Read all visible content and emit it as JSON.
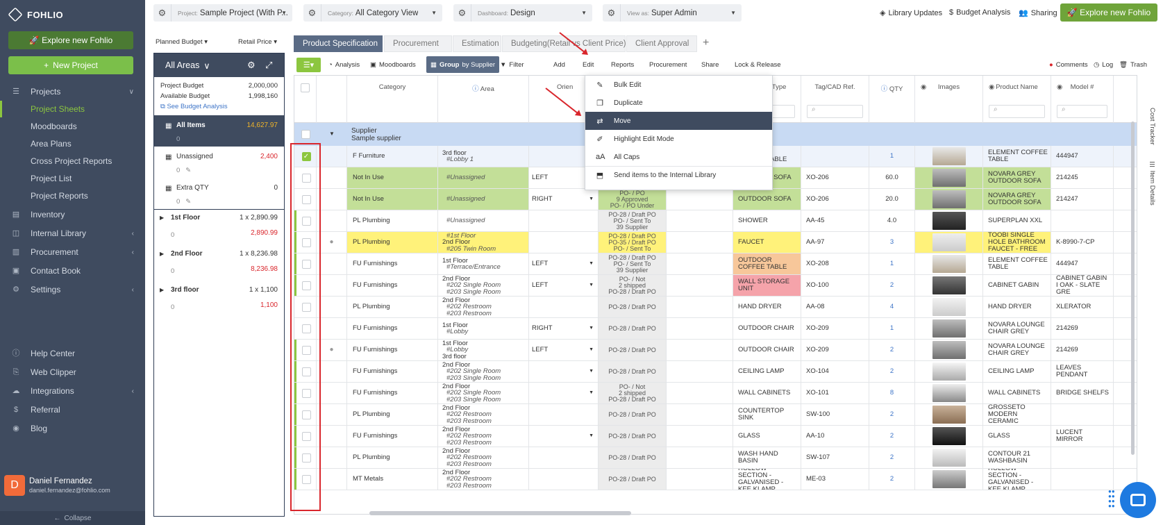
{
  "brand": {
    "name": "FOHLIO"
  },
  "sidebar": {
    "explore_label": "🚀 Explore new Fohlio",
    "new_project_label": "New Project",
    "nav": [
      {
        "label": "Projects",
        "icon": "list-icon",
        "chev": true
      },
      {
        "label": "Project Sheets",
        "sub": true,
        "active": true
      },
      {
        "label": "Moodboards",
        "sub": true
      },
      {
        "label": "Area Plans",
        "sub": true
      },
      {
        "label": "Cross Project Reports",
        "sub": true
      },
      {
        "label": "Project List",
        "sub": true
      },
      {
        "label": "Project Reports",
        "sub": true
      },
      {
        "label": "Inventory",
        "icon": "inventory-icon"
      },
      {
        "label": "Internal Library",
        "icon": "box-icon",
        "chev": true
      },
      {
        "label": "Procurement",
        "icon": "doc-icon",
        "chev": true
      },
      {
        "label": "Contact Book",
        "icon": "contact-icon"
      },
      {
        "label": "Settings",
        "icon": "gear-icon",
        "chev": true
      }
    ],
    "bottom_nav": [
      {
        "label": "Help Center",
        "icon": "info-icon"
      },
      {
        "label": "Web Clipper",
        "icon": "clip-icon"
      },
      {
        "label": "Integrations",
        "icon": "cloud-icon",
        "chev": true
      },
      {
        "label": "Referral",
        "icon": "dollar-icon"
      },
      {
        "label": "Blog",
        "icon": "rss-icon"
      }
    ],
    "user": {
      "initial": "D",
      "name": "Daniel Fernandez",
      "email": "daniel.fernandez@fohlio.com"
    },
    "collapse_label": "Collapse"
  },
  "topbar": {
    "project_label": "Project:",
    "project_value": "Sample Project (With P...",
    "category_label": "Category:",
    "category_value": "All Category View",
    "dashboard_label": "Dashboard:",
    "dashboard_value": "Design",
    "viewas_label": "View as:",
    "viewas_value": "Super Admin",
    "library_updates": "Library Updates",
    "budget_analysis": "Budget Analysis",
    "sharing": "Sharing",
    "explore_label": "🚀 Explore new Fohlio"
  },
  "budget": {
    "planned_label": "Planned Budget",
    "retail_label": "Retail Price",
    "head": "All Areas",
    "project_budget_label": "Project Budget",
    "project_budget": "2,000,000",
    "available_label": "Available Budget",
    "available": "1,998,160",
    "see_analysis": "See Budget Analysis",
    "items": [
      {
        "name": "All Items",
        "amount": "14,627.97",
        "sub": "0",
        "selected": true
      },
      {
        "name": "Unassigned",
        "amount": "2,400",
        "sub": "0",
        "red": true
      },
      {
        "name": "Extra QTY",
        "amount": "0",
        "sub": "0"
      }
    ],
    "floors": [
      {
        "name": "1st Floor",
        "qty": "1 x 2,890.99",
        "sub": "0",
        "amount": "2,890.99"
      },
      {
        "name": "2nd Floor",
        "qty": "1 x 8,236.98",
        "sub": "0",
        "amount": "8,236.98"
      },
      {
        "name": "3rd floor",
        "qty": "1 x 1,100",
        "sub": "0",
        "amount": "1,100"
      }
    ]
  },
  "tabs": [
    "Product Specification",
    "Procurement",
    "Estimation",
    "Budgeting(Retail vs Client Price)",
    "Client Approval"
  ],
  "toolbar": {
    "analysis": "Analysis",
    "moodboards": "Moodboards",
    "group": "Group",
    "group_by": "by Supplier",
    "filter": "Filter",
    "add": "Add",
    "edit": "Edit",
    "reports": "Reports",
    "procurement": "Procurement",
    "share": "Share",
    "lock": "Lock & Release",
    "comments": "Comments",
    "log": "Log",
    "trash": "Trash"
  },
  "columns": {
    "category": "Category",
    "area": "Area",
    "orient": "Orien",
    "product_type": "Product Type",
    "tag": "Tag/CAD Ref.",
    "qty": "QTY",
    "images": "Images",
    "product_name": "Product Name",
    "model": "Model #"
  },
  "group_row": {
    "line1": "Supplier",
    "line2": "Sample supplier"
  },
  "edit_menu": [
    "Bulk Edit",
    "Duplicate",
    "Move",
    "Highlight Edit Mode",
    "All Caps",
    "Send items to the Internal Library"
  ],
  "rows": [
    {
      "cat": "F Furniture",
      "area": [
        "3rd floor",
        "#Lobby 1"
      ],
      "orient": "",
      "status": [],
      "ptype": "OUTDOOR COFFEE TABLE",
      "tag": "",
      "qty": "1",
      "pname": "ELEMENT COFFEE TABLE",
      "model": "444947",
      "checked": true
    },
    {
      "cat": "Not In Use",
      "area": [
        "#Unassigned"
      ],
      "orient": "LEFT",
      "status": [],
      "ptype": "OUTDOOR SOFA",
      "tag": "XO-206",
      "qty": "60.0",
      "pname": "NOVARA GREY OUTDOOR SOFA",
      "model": "214245",
      "green": true
    },
    {
      "cat": "Not In Use",
      "area": [
        "#Unassigned"
      ],
      "orient": "RIGHT",
      "status": [
        "PO- / PO",
        "9 Approved",
        "PO- / PO Under"
      ],
      "ptype": "OUTDOOR SOFA",
      "tag": "XO-206",
      "qty": "20.0",
      "pname": "NOVARA GREY OUTDOOR SOFA",
      "model": "214247",
      "green": true
    },
    {
      "cat": "PL Plumbing",
      "area": [
        "#Unassigned"
      ],
      "orient": "",
      "status": [
        "PO-28 / Draft PO",
        "PO- / Sent To",
        "39 Supplier"
      ],
      "ptype": "SHOWER",
      "tag": "AA-45",
      "qty": "4.0",
      "pname": "SUPERPLAN XXL",
      "model": ""
    },
    {
      "cat": "PL Plumbing",
      "area": [
        "#1st Floor",
        "2nd Floor",
        "#205 Twin Room"
      ],
      "orient": "",
      "status": [
        "PO-28 / Draft PO",
        "PO-35 / Draft PO",
        "PO- / Sent To"
      ],
      "ptype": "FAUCET",
      "tag": "AA-97",
      "qty": "3",
      "pname": "TOOBI SINGLE HOLE BATHROOM FAUCET - FREE",
      "model": "K-8990-7-CP",
      "yellow": true
    },
    {
      "cat": "FU Furnishings",
      "area": [
        "1st Floor",
        "#Terrace/Entrance"
      ],
      "orient": "LEFT",
      "status": [
        "PO-28 / Draft PO",
        "PO- / Sent To",
        "39 Supplier"
      ],
      "ptype": "OUTDOOR COFFEE TABLE",
      "tag": "XO-208",
      "qty": "1",
      "pname": "ELEMENT COFFEE TABLE",
      "model": "444947",
      "ptcolor": "#f7c79a"
    },
    {
      "cat": "FU Furnishings",
      "area": [
        "2nd Floor",
        "#202 Single Room",
        "#203 Single Room"
      ],
      "orient": "LEFT",
      "status": [
        "PO- / Not",
        "2 shipped",
        "PO-28 / Draft PO"
      ],
      "ptype": "WALL STORAGE UNIT",
      "tag": "XO-100",
      "qty": "2",
      "pname": "CABINET GABIN",
      "model": "CABINET GABIN I OAK - SLATE GRE",
      "ptcolor": "#f5a3aa"
    },
    {
      "cat": "PL Plumbing",
      "area": [
        "2nd Floor",
        "#202 Restroom",
        "#203 Restroom"
      ],
      "orient": "",
      "status": [
        "PO-28 / Draft PO"
      ],
      "ptype": "HAND DRYER",
      "tag": "AA-08",
      "qty": "4",
      "pname": "HAND DRYER",
      "model": "XLERATOR"
    },
    {
      "cat": "FU Furnishings",
      "area": [
        "1st Floor",
        "#Lobby"
      ],
      "orient": "RIGHT",
      "status": [
        "PO-28 / Draft PO"
      ],
      "ptype": "OUTDOOR CHAIR",
      "tag": "XO-209",
      "qty": "1",
      "pname": "NOVARA LOUNGE CHAIR GREY",
      "model": "214269"
    },
    {
      "cat": "FU Furnishings",
      "area": [
        "1st Floor",
        "#Lobby",
        "3rd floor"
      ],
      "orient": "LEFT",
      "status": [
        "PO-28 / Draft PO"
      ],
      "ptype": "OUTDOOR CHAIR",
      "tag": "XO-209",
      "qty": "2",
      "pname": "NOVARA LOUNGE CHAIR GREY",
      "model": "214269",
      "comment": true
    },
    {
      "cat": "FU Furnishings",
      "area": [
        "2nd Floor",
        "#202 Single Room",
        "#203 Single Room"
      ],
      "orient": "",
      "status": [
        "PO-28 / Draft PO"
      ],
      "ptype": "CEILING LAMP",
      "tag": "XO-104",
      "qty": "2",
      "pname": "CEILING LAMP",
      "model": "LEAVES PENDANT"
    },
    {
      "cat": "FU Furnishings",
      "area": [
        "2nd Floor",
        "#202 Single Room",
        "#203 Single Room"
      ],
      "orient": "",
      "status": [
        "PO- / Not",
        "2 shipped",
        "PO-28 / Draft PO"
      ],
      "ptype": "WALL CABINETS",
      "tag": "XO-101",
      "qty": "8",
      "pname": "WALL CABINETS",
      "model": "BRIDGE SHELFS"
    },
    {
      "cat": "PL Plumbing",
      "area": [
        "2nd Floor",
        "#202 Restroom",
        "#203 Restroom"
      ],
      "orient": "",
      "status": [
        "PO-28 / Draft PO"
      ],
      "ptype": "COUNTERTOP SINK",
      "tag": "SW-100",
      "qty": "2",
      "pname": "GROSSETO MODERN CERAMIC",
      "model": ""
    },
    {
      "cat": "FU Furnishings",
      "area": [
        "2nd Floor",
        "#202 Restroom",
        "#203 Restroom"
      ],
      "orient": "",
      "status": [
        "PO-28 / Draft PO"
      ],
      "ptype": "GLASS",
      "tag": "AA-10",
      "qty": "2",
      "pname": "GLASS",
      "model": "LUCENT MIRROR"
    },
    {
      "cat": "PL Plumbing",
      "area": [
        "2nd Floor",
        "#202 Restroom",
        "#203 Restroom"
      ],
      "orient": "",
      "status": [
        "PO-28 / Draft PO"
      ],
      "ptype": "WASH HAND BASIN",
      "tag": "SW-107",
      "qty": "2",
      "pname": "CONTOUR 21 WASHBASIN",
      "model": ""
    },
    {
      "cat": "MT Metals",
      "area": [
        "2nd Floor",
        "#202 Restroom",
        "#203 Restroom"
      ],
      "orient": "",
      "status": [
        "PO-28 / Draft PO"
      ],
      "ptype": "HOLLOW SECTION - GALVANISED - KEE KLAMP",
      "tag": "ME-03",
      "qty": "2",
      "pname": "HOLLOW SECTION - GALVANISED - KEE KLAMP",
      "model": ""
    }
  ],
  "rail": {
    "cost_tracker": "Cost Tracker",
    "item_details": "Item Details"
  },
  "colors": {
    "accent_green": "#8cc63f",
    "sidebar": "#3f4b5f",
    "annotation_red": "#d9262c"
  }
}
